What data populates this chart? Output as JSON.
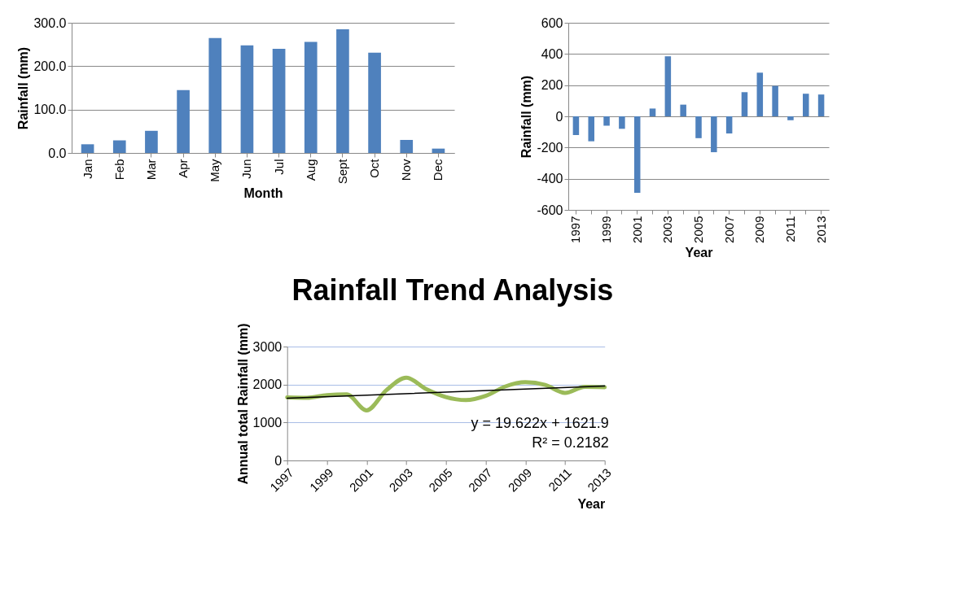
{
  "chart_data": [
    {
      "type": "bar",
      "xlabel": "Month",
      "ylabel": "Rainfall (mm)",
      "categories": [
        "Jan",
        "Feb",
        "Mar",
        "Apr",
        "May",
        "Jun",
        "Jul",
        "Aug",
        "Sept",
        "Oct",
        "Nov",
        "Dec"
      ],
      "values": [
        20,
        29,
        51,
        145,
        265,
        248,
        240,
        256,
        285,
        231,
        30,
        10
      ],
      "color": "#4f81bd",
      "ylim": [
        0,
        300
      ],
      "yticks": [
        {
          "value": 0,
          "label": "0.0"
        },
        {
          "value": 100,
          "label": "100.0"
        },
        {
          "value": 200,
          "label": "200.0"
        },
        {
          "value": 300,
          "label": "300.0"
        }
      ],
      "grid": "y"
    },
    {
      "type": "bar",
      "xlabel": "Year",
      "ylabel": "Rainfall (mm)",
      "categories": [
        "1997",
        null,
        "1999",
        null,
        "2001",
        null,
        "2003",
        null,
        "2005",
        null,
        "2007",
        null,
        "2009",
        null,
        "2011",
        null,
        "2013"
      ],
      "values": [
        -120,
        -160,
        -60,
        -80,
        -490,
        50,
        385,
        75,
        -140,
        -230,
        -110,
        155,
        280,
        195,
        -25,
        145,
        140
      ],
      "color": "#4f81bd",
      "ylim": [
        -600,
        600
      ],
      "yticks": [
        -600,
        -400,
        -200,
        0,
        200,
        400,
        600
      ],
      "grid": "y"
    },
    {
      "type": "line",
      "title": "Rainfall Trend Analysis",
      "xlabel": "Year",
      "ylabel": "Annual total Rainfall (mm)",
      "x": [
        1997,
        1998,
        1999,
        2000,
        2001,
        2002,
        2003,
        2004,
        2005,
        2006,
        2007,
        2008,
        2009,
        2010,
        2011,
        2012,
        2013
      ],
      "series": [
        {
          "color": "#9bbb59",
          "values": [
            1660,
            1650,
            1720,
            1740,
            1320,
            1850,
            2180,
            1880,
            1670,
            1590,
            1700,
            1950,
            2060,
            1990,
            1780,
            1940,
            1930
          ]
        },
        {
          "type": "line",
          "color": "#000000",
          "x": [
            1997,
            2013
          ],
          "values": [
            1640,
            1960
          ]
        }
      ],
      "xlim": [
        1997,
        2013
      ],
      "xticks": [
        1997,
        1999,
        2001,
        2003,
        2005,
        2007,
        2009,
        2011,
        2013
      ],
      "ylim": [
        0,
        3000
      ],
      "yticks": [
        0,
        1000,
        2000,
        3000
      ],
      "grid": "y",
      "annotations": [
        "y = 19.622x + 1621.9",
        "R² = 0.2182"
      ]
    }
  ]
}
